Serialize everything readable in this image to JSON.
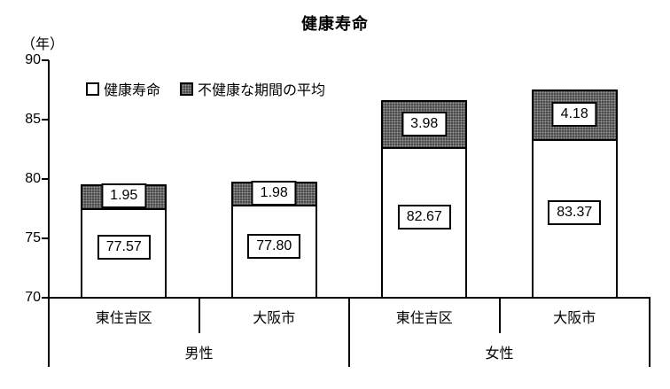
{
  "title": "健康寿命",
  "y_axis": {
    "unit_label": "（年）",
    "ticks": [
      90,
      85,
      80,
      75,
      70
    ]
  },
  "legend": [
    {
      "label": "健康寿命",
      "swatch": "white-square"
    },
    {
      "label": "不健康な期間の平均",
      "swatch": "dark-dotted-square"
    }
  ],
  "chart_data": {
    "type": "bar",
    "stacked": true,
    "title": "健康寿命",
    "ylabel": "（年）",
    "ylim": [
      70,
      90
    ],
    "grid": false,
    "legend_position": "inside-top-left",
    "groups": [
      {
        "label": "男性",
        "categories": [
          "東住吉区",
          "大阪市"
        ]
      },
      {
        "label": "女性",
        "categories": [
          "東住吉区",
          "大阪市"
        ]
      }
    ],
    "series": [
      {
        "name": "健康寿命",
        "values": [
          77.57,
          77.8,
          82.67,
          83.37
        ],
        "color": "#ffffff"
      },
      {
        "name": "不健康な期間の平均",
        "values": [
          1.95,
          1.98,
          3.98,
          4.18
        ],
        "color": "#4a4a4a"
      }
    ],
    "colors": {
      "border": "#000000",
      "healthy_fill": "#ffffff",
      "unhealthy_fill": "#4a4a4a",
      "unhealthy_dot": "#9b9b9b"
    }
  }
}
